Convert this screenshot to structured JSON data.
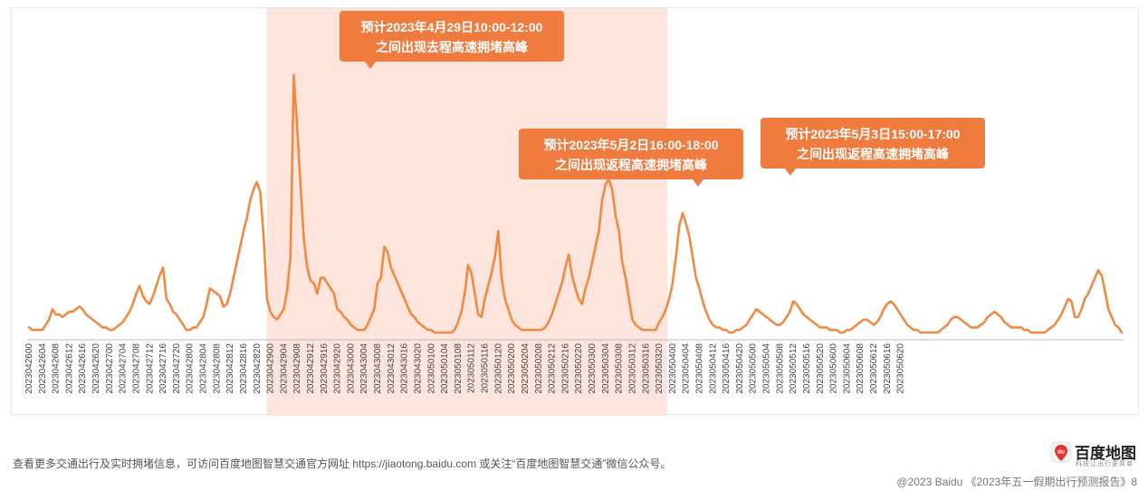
{
  "chart_data": {
    "type": "line",
    "title": "",
    "xlabel": "",
    "ylabel": "",
    "line_color": "#f08a43",
    "highlight_color": "#fde5dd",
    "callout_color": "#f07b3f",
    "highlight_range": [
      "2023042900",
      "2023050320"
    ],
    "x_tick_labels": [
      "2023042600",
      "2023042604",
      "2023042608",
      "2023042612",
      "2023042616",
      "2023042620",
      "2023042700",
      "2023042704",
      "2023042708",
      "2023042712",
      "2023042716",
      "2023042720",
      "2023042800",
      "2023042804",
      "2023042808",
      "2023042812",
      "2023042816",
      "2023042820",
      "2023042900",
      "2023042904",
      "2023042908",
      "2023042912",
      "2023042916",
      "2023042920",
      "2023043000",
      "2023043004",
      "2023043008",
      "2023043012",
      "2023043016",
      "2023043020",
      "2023050100",
      "2023050104",
      "2023050108",
      "2023050112",
      "2023050116",
      "2023050120",
      "2023050200",
      "2023050204",
      "2023050208",
      "2023050212",
      "2023050216",
      "2023050220",
      "2023050300",
      "2023050304",
      "2023050308",
      "2023050312",
      "2023050316",
      "2023050320",
      "2023050400",
      "2023050404",
      "2023050408",
      "2023050412",
      "2023050416",
      "2023050420",
      "2023050500",
      "2023050504",
      "2023050508",
      "2023050512",
      "2023050516",
      "2023050520",
      "2023050600",
      "2023050604",
      "2023050608",
      "2023050612",
      "2023050616",
      "2023050620"
    ],
    "values": [
      3,
      2,
      2,
      2,
      2,
      4,
      6,
      10,
      8,
      8,
      7,
      8,
      9,
      9,
      10,
      11,
      10,
      8,
      7,
      6,
      5,
      4,
      3,
      3,
      2,
      2,
      3,
      4,
      5,
      7,
      9,
      12,
      16,
      19,
      15,
      13,
      12,
      15,
      19,
      23,
      26,
      14,
      12,
      9,
      8,
      6,
      4,
      2,
      2,
      3,
      3,
      5,
      7,
      12,
      18,
      17,
      16,
      15,
      11,
      12,
      16,
      22,
      28,
      34,
      40,
      45,
      52,
      56,
      59,
      55,
      38,
      14,
      9,
      7,
      6,
      8,
      10,
      17,
      30,
      100,
      80,
      58,
      37,
      26,
      21,
      20,
      16,
      22,
      22,
      20,
      18,
      16,
      10,
      9,
      7,
      6,
      4,
      3,
      2,
      2,
      2,
      4,
      7,
      10,
      20,
      22,
      34,
      32,
      26,
      23,
      20,
      17,
      14,
      11,
      8,
      7,
      5,
      4,
      3,
      2,
      2,
      1,
      1,
      1,
      1,
      1,
      1,
      2,
      5,
      9,
      16,
      27,
      24,
      16,
      8,
      7,
      14,
      19,
      24,
      30,
      40,
      22,
      14,
      10,
      6,
      4,
      3,
      2,
      2,
      2,
      2,
      2,
      2,
      2,
      3,
      5,
      8,
      12,
      16,
      20,
      26,
      31,
      23,
      18,
      14,
      12,
      18,
      22,
      28,
      34,
      40,
      52,
      58,
      60,
      56,
      46,
      40,
      28,
      22,
      14,
      6,
      4,
      3,
      2,
      2,
      2,
      2,
      2,
      5,
      7,
      10,
      14,
      20,
      30,
      42,
      47,
      43,
      38,
      30,
      22,
      18,
      13,
      9,
      6,
      4,
      3,
      3,
      2,
      2,
      1,
      1,
      2,
      2,
      3,
      4,
      6,
      8,
      10,
      9,
      8,
      7,
      6,
      5,
      4,
      4,
      5,
      7,
      9,
      13,
      12,
      10,
      8,
      7,
      6,
      5,
      4,
      3,
      3,
      3,
      2,
      2,
      2,
      1,
      1,
      2,
      2,
      3,
      4,
      5,
      6,
      6,
      5,
      4,
      5,
      7,
      10,
      12,
      13,
      12,
      10,
      8,
      6,
      4,
      3,
      2,
      2,
      1,
      1,
      1,
      1,
      1,
      1,
      2,
      3,
      4,
      6,
      7,
      7,
      6,
      5,
      4,
      3,
      3,
      3,
      4,
      5,
      7,
      8,
      9,
      8,
      7,
      5,
      4,
      3,
      3,
      3,
      3,
      2,
      2,
      1,
      1,
      1,
      1,
      1,
      2,
      3,
      4,
      6,
      8,
      11,
      14,
      13,
      7,
      7,
      10,
      14,
      16,
      19,
      22,
      25,
      23,
      17,
      10,
      7,
      4,
      3,
      1
    ],
    "annotations": [
      {
        "line1": "预计2023年4月29日10:00-12:00",
        "line2": "之间出现去程高速拥堵高峰"
      },
      {
        "line1": "预计2023年5月2日16:00-18:00",
        "line2": "之间出现返程高速拥堵高峰"
      },
      {
        "line1": "预计2023年5月3日15:00-17:00",
        "line2": "之间出现返程高速拥堵高峰"
      }
    ]
  },
  "footer": {
    "note": "查看更多交通出行及实时拥堵信息，可访问百度地图智慧交通官方网址 https://jiaotong.baidu.com 或关注“百度地图智慧交通”微信公众号。",
    "copyright": "@2023 Baidu 《2023年五一假期出行预测报告》8"
  },
  "logo": {
    "name": "百度地图",
    "slogan": "科技让出行更简单",
    "pin_text": "du",
    "pin_color": "#e8342f"
  }
}
